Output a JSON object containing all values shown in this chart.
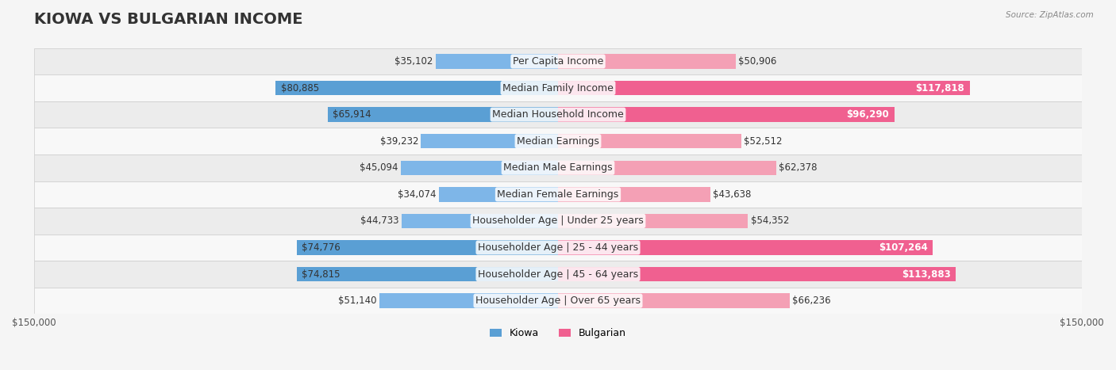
{
  "title": "KIOWA VS BULGARIAN INCOME",
  "source": "Source: ZipAtlas.com",
  "categories": [
    "Per Capita Income",
    "Median Family Income",
    "Median Household Income",
    "Median Earnings",
    "Median Male Earnings",
    "Median Female Earnings",
    "Householder Age | Under 25 years",
    "Householder Age | 25 - 44 years",
    "Householder Age | 45 - 64 years",
    "Householder Age | Over 65 years"
  ],
  "kiowa_values": [
    35102,
    80885,
    65914,
    39232,
    45094,
    34074,
    44733,
    74776,
    74815,
    51140
  ],
  "bulgarian_values": [
    50906,
    117818,
    96290,
    52512,
    62378,
    43638,
    54352,
    107264,
    113883,
    66236
  ],
  "kiowa_color": "#7EB6E8",
  "bulgarian_color": "#F4A0B5",
  "kiowa_color_strong": "#5A9FD4",
  "bulgarian_color_strong": "#F06090",
  "max_value": 150000,
  "background_color": "#f5f5f5",
  "row_bg_color": "#ffffff",
  "row_alt_bg_color": "#f0f0f0",
  "title_fontsize": 14,
  "label_fontsize": 9,
  "value_fontsize": 8.5,
  "legend_fontsize": 9
}
